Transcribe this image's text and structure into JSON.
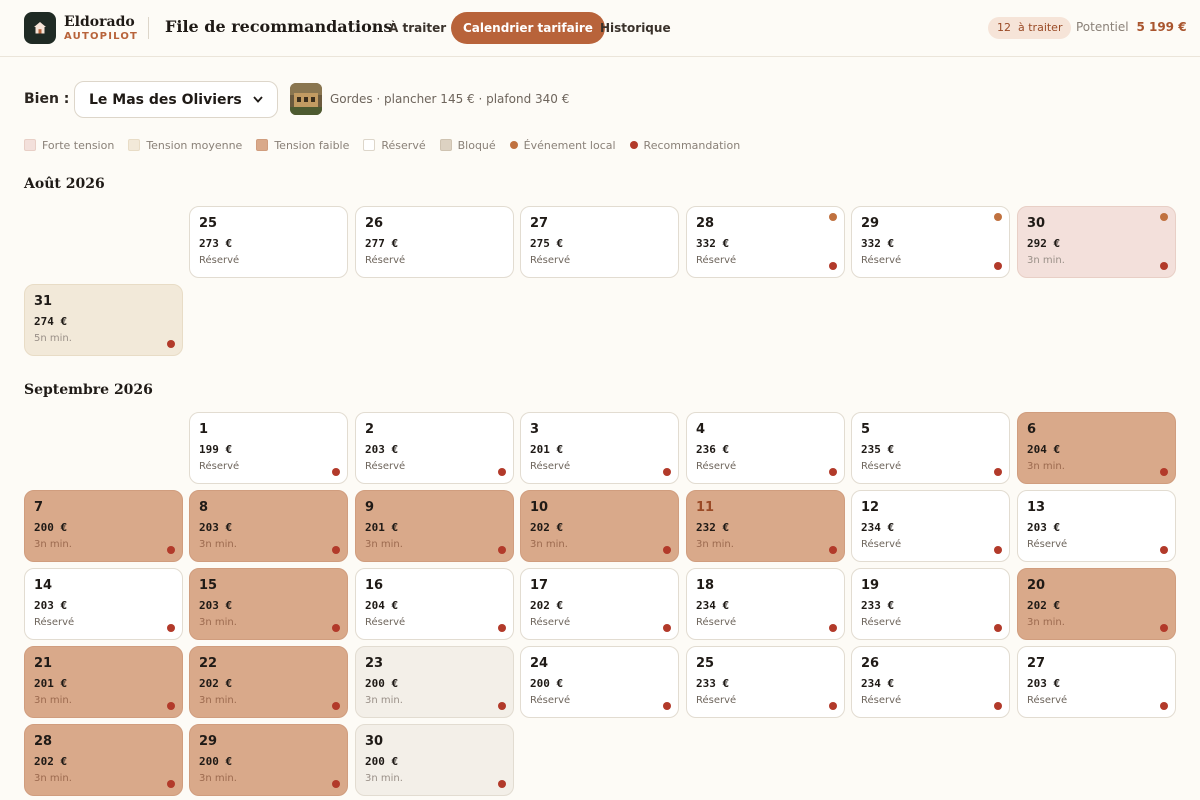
{
  "brand": {
    "name": "Eldorado",
    "sub": "AUTOPILOT"
  },
  "header": {
    "title": "File de recommandations",
    "tabs": [
      {
        "label": "À traiter",
        "active": false
      },
      {
        "label": "Calendrier tarifaire",
        "active": true
      },
      {
        "label": "Historique",
        "active": false
      }
    ],
    "pending_count": "12",
    "pending_label": "à traiter",
    "potential_label": "Potentiel",
    "potential_value": "5 199 €"
  },
  "property": {
    "label": "Bien :",
    "selected": "Le Mas des Oliviers",
    "meta": "Gordes · plancher 145 € · plafond 340 €"
  },
  "legend": [
    {
      "label": "Forte tension",
      "kind": "swatch",
      "color": "#f3e0db"
    },
    {
      "label": "Tension moyenne",
      "kind": "swatch",
      "color": "#f2e9d9"
    },
    {
      "label": "Tension faible",
      "kind": "swatch",
      "color": "#d9a98a"
    },
    {
      "label": "Réservé",
      "kind": "swatch",
      "color": "#ffffff"
    },
    {
      "label": "Bloqué",
      "kind": "swatch",
      "color": "#ddd2c2"
    },
    {
      "label": "Événement local",
      "kind": "dot",
      "color": "#c0713f"
    },
    {
      "label": "Recommandation",
      "kind": "dot",
      "color": "#b23a2a"
    }
  ],
  "months": [
    {
      "title": "Août 2026",
      "days": [
        {
          "day": "25",
          "price": "273 €",
          "status": "Réservé",
          "type": "booked",
          "event": false,
          "rec": false
        },
        {
          "day": "26",
          "price": "277 €",
          "status": "Réservé",
          "type": "booked",
          "event": false,
          "rec": false
        },
        {
          "day": "27",
          "price": "275 €",
          "status": "Réservé",
          "type": "booked",
          "event": false,
          "rec": false
        },
        {
          "day": "28",
          "price": "332 €",
          "status": "Réservé",
          "type": "booked",
          "event": true,
          "rec": true
        },
        {
          "day": "29",
          "price": "332 €",
          "status": "Réservé",
          "type": "booked",
          "event": true,
          "rec": true
        },
        {
          "day": "30",
          "price": "292 €",
          "status": "3n min.",
          "type": "high",
          "event": true,
          "rec": true
        },
        {
          "day": "31",
          "price": "274 €",
          "status": "5n min.",
          "type": "medium",
          "event": false,
          "rec": true
        }
      ]
    },
    {
      "title": "Septembre 2026",
      "days": [
        {
          "day": "1",
          "price": "199 €",
          "status": "Réservé",
          "type": "booked",
          "event": false,
          "rec": true
        },
        {
          "day": "2",
          "price": "203 €",
          "status": "Réservé",
          "type": "booked",
          "event": false,
          "rec": true
        },
        {
          "day": "3",
          "price": "201 €",
          "status": "Réservé",
          "type": "booked",
          "event": false,
          "rec": true
        },
        {
          "day": "4",
          "price": "236 €",
          "status": "Réservé",
          "type": "booked",
          "event": false,
          "rec": true
        },
        {
          "day": "5",
          "price": "235 €",
          "status": "Réservé",
          "type": "booked",
          "event": false,
          "rec": true
        },
        {
          "day": "6",
          "price": "204 €",
          "status": "3n min.",
          "type": "low",
          "event": false,
          "rec": true
        },
        {
          "day": "7",
          "price": "200 €",
          "status": "3n min.",
          "type": "low",
          "event": false,
          "rec": true
        },
        {
          "day": "8",
          "price": "203 €",
          "status": "3n min.",
          "type": "low",
          "event": false,
          "rec": true
        },
        {
          "day": "9",
          "price": "201 €",
          "status": "3n min.",
          "type": "low",
          "event": false,
          "rec": true
        },
        {
          "day": "10",
          "price": "202 €",
          "status": "3n min.",
          "type": "low",
          "event": false,
          "rec": true
        },
        {
          "day": "11",
          "price": "232 €",
          "status": "3n min.",
          "type": "low",
          "event": false,
          "rec": true,
          "highlight": true
        },
        {
          "day": "12",
          "price": "234 €",
          "status": "Réservé",
          "type": "booked",
          "event": false,
          "rec": true
        },
        {
          "day": "13",
          "price": "203 €",
          "status": "Réservé",
          "type": "booked",
          "event": false,
          "rec": true
        },
        {
          "day": "14",
          "price": "203 €",
          "status": "Réservé",
          "type": "booked",
          "event": false,
          "rec": true
        },
        {
          "day": "15",
          "price": "203 €",
          "status": "3n min.",
          "type": "low",
          "event": false,
          "rec": true
        },
        {
          "day": "16",
          "price": "204 €",
          "status": "Réservé",
          "type": "booked",
          "event": false,
          "rec": true
        },
        {
          "day": "17",
          "price": "202 €",
          "status": "Réservé",
          "type": "booked",
          "event": false,
          "rec": true
        },
        {
          "day": "18",
          "price": "234 €",
          "status": "Réservé",
          "type": "booked",
          "event": false,
          "rec": true
        },
        {
          "day": "19",
          "price": "233 €",
          "status": "Réservé",
          "type": "booked",
          "event": false,
          "rec": true
        },
        {
          "day": "20",
          "price": "202 €",
          "status": "3n min.",
          "type": "low",
          "event": false,
          "rec": true
        },
        {
          "day": "21",
          "price": "201 €",
          "status": "3n min.",
          "type": "low",
          "event": false,
          "rec": true
        },
        {
          "day": "22",
          "price": "202 €",
          "status": "3n min.",
          "type": "low",
          "event": false,
          "rec": true
        },
        {
          "day": "23",
          "price": "200 €",
          "status": "3n min.",
          "type": "blocked",
          "event": false,
          "rec": true
        },
        {
          "day": "24",
          "price": "200 €",
          "status": "Réservé",
          "type": "booked",
          "event": false,
          "rec": true
        },
        {
          "day": "25",
          "price": "233 €",
          "status": "Réservé",
          "type": "booked",
          "event": false,
          "rec": true
        },
        {
          "day": "26",
          "price": "234 €",
          "status": "Réservé",
          "type": "booked",
          "event": false,
          "rec": true
        },
        {
          "day": "27",
          "price": "203 €",
          "status": "Réservé",
          "type": "booked",
          "event": false,
          "rec": true
        },
        {
          "day": "28",
          "price": "202 €",
          "status": "3n min.",
          "type": "low",
          "event": false,
          "rec": true
        },
        {
          "day": "29",
          "price": "200 €",
          "status": "3n min.",
          "type": "low",
          "event": false,
          "rec": true
        },
        {
          "day": "30",
          "price": "200 €",
          "status": "3n min.",
          "type": "blocked",
          "event": false,
          "rec": true
        }
      ]
    }
  ]
}
